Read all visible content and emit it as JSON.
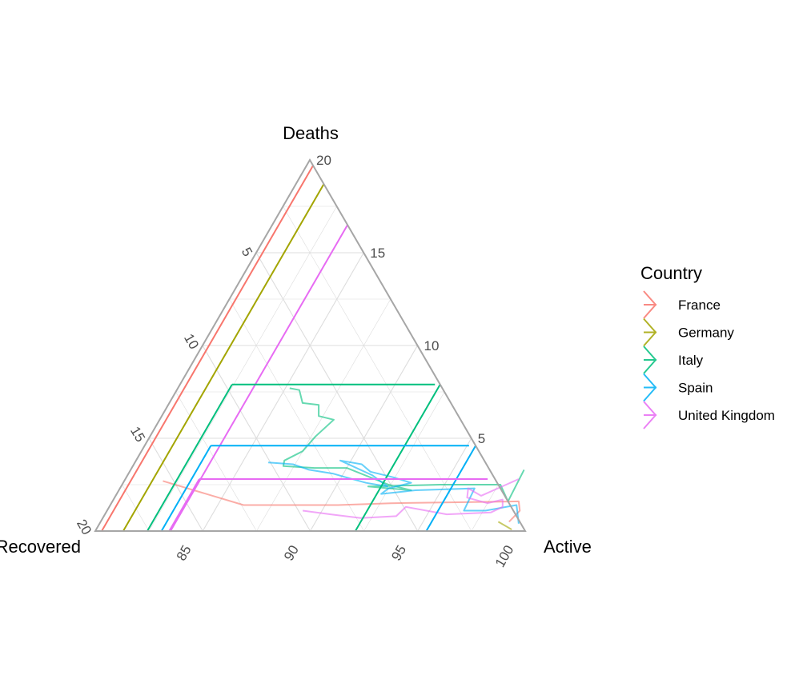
{
  "chart_data": {
    "type": "ternary",
    "axes": {
      "top": {
        "label": "Deaths",
        "range": [
          0,
          20
        ],
        "ticks": [
          "5",
          "10",
          "15",
          "20"
        ]
      },
      "left": {
        "label": "Recovered",
        "range": [
          80,
          100
        ],
        "ticks": [
          "5",
          "10",
          "15",
          "20"
        ]
      },
      "right": {
        "label": "Active",
        "range": [
          80,
          100
        ]
      },
      "bottom_ticks": [
        "85",
        "90",
        "95",
        "100"
      ],
      "right_ticks": [
        "5",
        "10",
        "15",
        "20"
      ]
    },
    "grid": true,
    "legend": {
      "title": "Country",
      "placement": "right",
      "entries": [
        "France",
        "Germany",
        "Italy",
        "Spain",
        "United Kingdom"
      ]
    },
    "colors": {
      "France": "#F8766D",
      "Germany": "#A3A500",
      "Italy": "#00BF7D",
      "Spain": "#00B0F6",
      "United Kingdom": "#E76BF3",
      "frame": "#a6a6a6",
      "grid": "#dddddd"
    },
    "reference_lines": [
      {
        "series": "France",
        "deaths": 19.7
      },
      {
        "series": "Germany",
        "deaths": 18.7
      },
      {
        "series": "Italy",
        "deaths": 7.9
      },
      {
        "series": "Spain",
        "deaths": 4.6
      },
      {
        "series": "United Kingdom",
        "deaths": 16.5
      }
    ],
    "series": [
      {
        "name": "France",
        "points": [
          {
            "active": 99.0,
            "deaths": 0.5
          },
          {
            "active": 99.2,
            "deaths": 1.1
          },
          {
            "active": 98.9,
            "deaths": 1.6
          },
          {
            "active": 93.0,
            "deaths": 1.5
          },
          {
            "active": 90.6,
            "deaths": 1.4
          },
          {
            "active": 86.2,
            "deaths": 1.4
          },
          {
            "active": 81.8,
            "deaths": 2.7
          }
        ]
      },
      {
        "name": "Germany",
        "points": [
          {
            "active": 99.1,
            "deaths": 0.2
          },
          {
            "active": 99.3,
            "deaths": 0.1
          },
          {
            "active": 98.5,
            "deaths": 0.5
          }
        ]
      },
      {
        "name": "Italy",
        "points": [
          {
            "active": 98.3,
            "deaths": 3.3
          },
          {
            "active": 98.4,
            "deaths": 1.6
          },
          {
            "active": 97.6,
            "deaths": 2.5
          },
          {
            "active": 96.0,
            "deaths": 2.5
          },
          {
            "active": 94.8,
            "deaths": 2.5
          },
          {
            "active": 91.5,
            "deaths": 2.4
          },
          {
            "active": 93.6,
            "deaths": 2.2
          },
          {
            "active": 92.4,
            "deaths": 2.5
          },
          {
            "active": 90.0,
            "deaths": 3.4
          },
          {
            "active": 88.5,
            "deaths": 3.4
          },
          {
            "active": 87.0,
            "deaths": 3.5
          },
          {
            "active": 86.9,
            "deaths": 3.8
          },
          {
            "active": 87.5,
            "deaths": 4.3
          },
          {
            "active": 87.7,
            "deaths": 5.1
          },
          {
            "active": 88.1,
            "deaths": 6.0
          },
          {
            "active": 87.3,
            "deaths": 6.2
          },
          {
            "active": 87.0,
            "deaths": 6.8
          },
          {
            "active": 86.2,
            "deaths": 6.9
          },
          {
            "active": 85.7,
            "deaths": 7.6
          },
          {
            "active": 85.2,
            "deaths": 7.7
          }
        ]
      },
      {
        "name": "Spain",
        "points": [
          {
            "active": 99.5,
            "deaths": 0.4
          },
          {
            "active": 98.9,
            "deaths": 1.4
          },
          {
            "active": 97.6,
            "deaths": 1.1
          },
          {
            "active": 96.6,
            "deaths": 1.1
          },
          {
            "active": 96.5,
            "deaths": 2.3
          },
          {
            "active": 93.8,
            "deaths": 2.2
          },
          {
            "active": 92.3,
            "deaths": 2.0
          },
          {
            "active": 92.5,
            "deaths": 2.3
          },
          {
            "active": 93.4,
            "deaths": 2.6
          },
          {
            "active": 92.4,
            "deaths": 2.9
          },
          {
            "active": 91.2,
            "deaths": 3.2
          },
          {
            "active": 90.6,
            "deaths": 3.6
          },
          {
            "active": 89.5,
            "deaths": 3.8
          },
          {
            "active": 91.4,
            "deaths": 3.0
          },
          {
            "active": 92.4,
            "deaths": 2.4
          },
          {
            "active": 91.3,
            "deaths": 2.6
          },
          {
            "active": 90.2,
            "deaths": 2.9
          },
          {
            "active": 89.5,
            "deaths": 3.1
          },
          {
            "active": 88.3,
            "deaths": 3.3
          },
          {
            "active": 87.4,
            "deaths": 3.6
          },
          {
            "active": 86.2,
            "deaths": 3.7
          }
        ]
      },
      {
        "name": "United Kingdom",
        "points": [
          {
            "active": 98.3,
            "deaths": 2.8
          },
          {
            "active": 97.0,
            "deaths": 1.9
          },
          {
            "active": 96.2,
            "deaths": 2.3
          },
          {
            "active": 96.4,
            "deaths": 1.8
          },
          {
            "active": 97.5,
            "deaths": 1.5
          },
          {
            "active": 98.1,
            "deaths": 1.7
          },
          {
            "active": 98.3,
            "deaths": 1.3
          },
          {
            "active": 97.9,
            "deaths": 1.0
          },
          {
            "active": 95.9,
            "deaths": 0.9
          },
          {
            "active": 93.8,
            "deaths": 1.3
          },
          {
            "active": 93.6,
            "deaths": 0.8
          },
          {
            "active": 92.0,
            "deaths": 0.7
          },
          {
            "active": 90.5,
            "deaths": 0.9
          },
          {
            "active": 89.1,
            "deaths": 1.1
          }
        ]
      }
    ]
  }
}
